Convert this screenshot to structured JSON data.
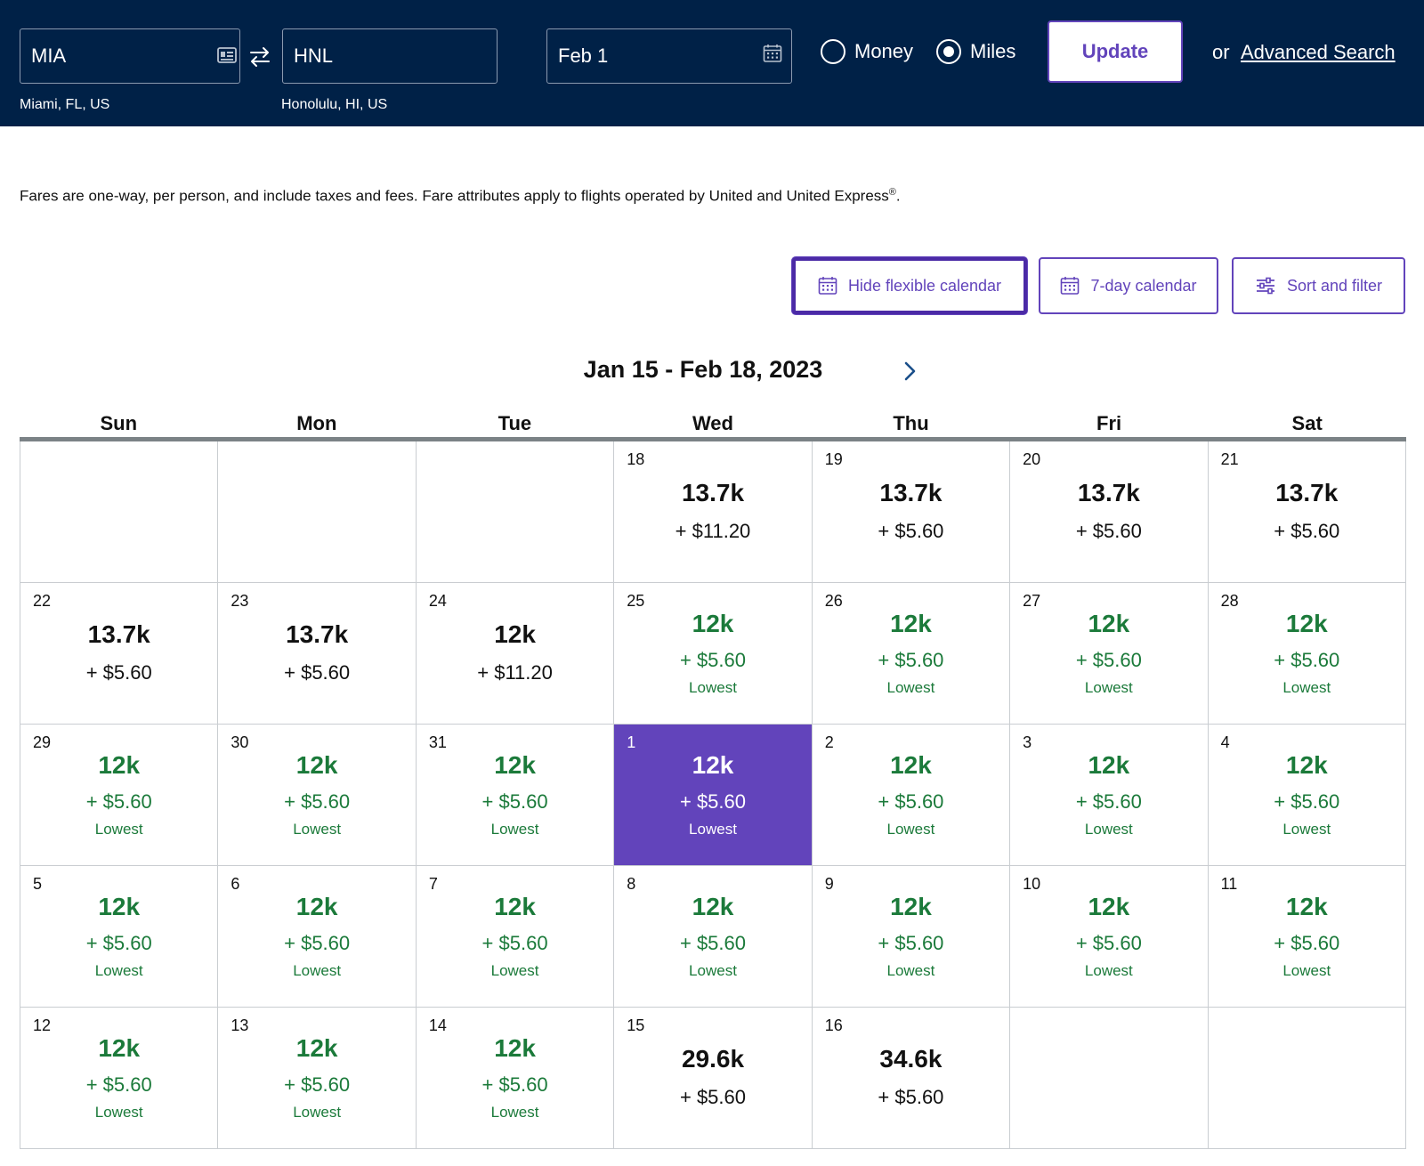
{
  "search": {
    "origin_code": "MIA",
    "origin_city": "Miami, FL, US",
    "destination_code": "HNL",
    "destination_city": "Honolulu, HI, US",
    "date": "Feb 1",
    "money_label": "Money",
    "miles_label": "Miles",
    "selected_option": "Miles",
    "update_label": "Update",
    "or_label": "or",
    "advanced_search_label": "Advanced Search"
  },
  "disclaimer": {
    "text": "Fares are one-way, per person, and include taxes and fees. Fare attributes apply to flights operated by United and United Express",
    "mark": "®",
    "end": "."
  },
  "toolbar": {
    "hide_flexible_label": "Hide flexible calendar",
    "seven_day_label": "7-day calendar",
    "sort_filter_label": "Sort and filter"
  },
  "calendar": {
    "range_title": "Jan 15 - Feb 18, 2023",
    "weekdays": [
      "Sun",
      "Mon",
      "Tue",
      "Wed",
      "Thu",
      "Fri",
      "Sat"
    ],
    "weeks": [
      [
        {
          "empty": true
        },
        {
          "empty": true
        },
        {
          "empty": true
        },
        {
          "day": "18",
          "miles": "13.7k",
          "tax": "+ $11.20",
          "status": "normal"
        },
        {
          "day": "19",
          "miles": "13.7k",
          "tax": "+ $5.60",
          "status": "normal"
        },
        {
          "day": "20",
          "miles": "13.7k",
          "tax": "+ $5.60",
          "status": "normal"
        },
        {
          "day": "21",
          "miles": "13.7k",
          "tax": "+ $5.60",
          "status": "normal"
        }
      ],
      [
        {
          "day": "22",
          "miles": "13.7k",
          "tax": "+ $5.60",
          "status": "normal"
        },
        {
          "day": "23",
          "miles": "13.7k",
          "tax": "+ $5.60",
          "status": "normal"
        },
        {
          "day": "24",
          "miles": "12k",
          "tax": "+ $11.20",
          "status": "normal"
        },
        {
          "day": "25",
          "miles": "12k",
          "tax": "+ $5.60",
          "status": "lowest",
          "note": "Lowest"
        },
        {
          "day": "26",
          "miles": "12k",
          "tax": "+ $5.60",
          "status": "lowest",
          "note": "Lowest"
        },
        {
          "day": "27",
          "miles": "12k",
          "tax": "+ $5.60",
          "status": "lowest",
          "note": "Lowest"
        },
        {
          "day": "28",
          "miles": "12k",
          "tax": "+ $5.60",
          "status": "lowest",
          "note": "Lowest"
        }
      ],
      [
        {
          "day": "29",
          "miles": "12k",
          "tax": "+ $5.60",
          "status": "lowest",
          "note": "Lowest"
        },
        {
          "day": "30",
          "miles": "12k",
          "tax": "+ $5.60",
          "status": "lowest",
          "note": "Lowest"
        },
        {
          "day": "31",
          "miles": "12k",
          "tax": "+ $5.60",
          "status": "lowest",
          "note": "Lowest"
        },
        {
          "day": "1",
          "miles": "12k",
          "tax": "+ $5.60",
          "status": "lowest",
          "note": "Lowest",
          "selected": true
        },
        {
          "day": "2",
          "miles": "12k",
          "tax": "+ $5.60",
          "status": "lowest",
          "note": "Lowest"
        },
        {
          "day": "3",
          "miles": "12k",
          "tax": "+ $5.60",
          "status": "lowest",
          "note": "Lowest"
        },
        {
          "day": "4",
          "miles": "12k",
          "tax": "+ $5.60",
          "status": "lowest",
          "note": "Lowest"
        }
      ],
      [
        {
          "day": "5",
          "miles": "12k",
          "tax": "+ $5.60",
          "status": "lowest",
          "note": "Lowest"
        },
        {
          "day": "6",
          "miles": "12k",
          "tax": "+ $5.60",
          "status": "lowest",
          "note": "Lowest"
        },
        {
          "day": "7",
          "miles": "12k",
          "tax": "+ $5.60",
          "status": "lowest",
          "note": "Lowest"
        },
        {
          "day": "8",
          "miles": "12k",
          "tax": "+ $5.60",
          "status": "lowest",
          "note": "Lowest"
        },
        {
          "day": "9",
          "miles": "12k",
          "tax": "+ $5.60",
          "status": "lowest",
          "note": "Lowest"
        },
        {
          "day": "10",
          "miles": "12k",
          "tax": "+ $5.60",
          "status": "lowest",
          "note": "Lowest"
        },
        {
          "day": "11",
          "miles": "12k",
          "tax": "+ $5.60",
          "status": "lowest",
          "note": "Lowest"
        }
      ],
      [
        {
          "day": "12",
          "miles": "12k",
          "tax": "+ $5.60",
          "status": "lowest",
          "note": "Lowest"
        },
        {
          "day": "13",
          "miles": "12k",
          "tax": "+ $5.60",
          "status": "lowest",
          "note": "Lowest"
        },
        {
          "day": "14",
          "miles": "12k",
          "tax": "+ $5.60",
          "status": "lowest",
          "note": "Lowest"
        },
        {
          "day": "15",
          "miles": "29.6k",
          "tax": "+ $5.60",
          "status": "normal"
        },
        {
          "day": "16",
          "miles": "34.6k",
          "tax": "+ $5.60",
          "status": "normal"
        },
        {
          "empty": true
        },
        {
          "empty": true
        }
      ]
    ]
  },
  "colors": {
    "header_bg": "#002147",
    "accent": "#6244bb",
    "lowest_green": "#1b7a3a"
  },
  "icons": [
    "id-card-icon",
    "swap-arrows-icon",
    "calendar-icon",
    "sliders-icon",
    "chevron-right-icon"
  ]
}
